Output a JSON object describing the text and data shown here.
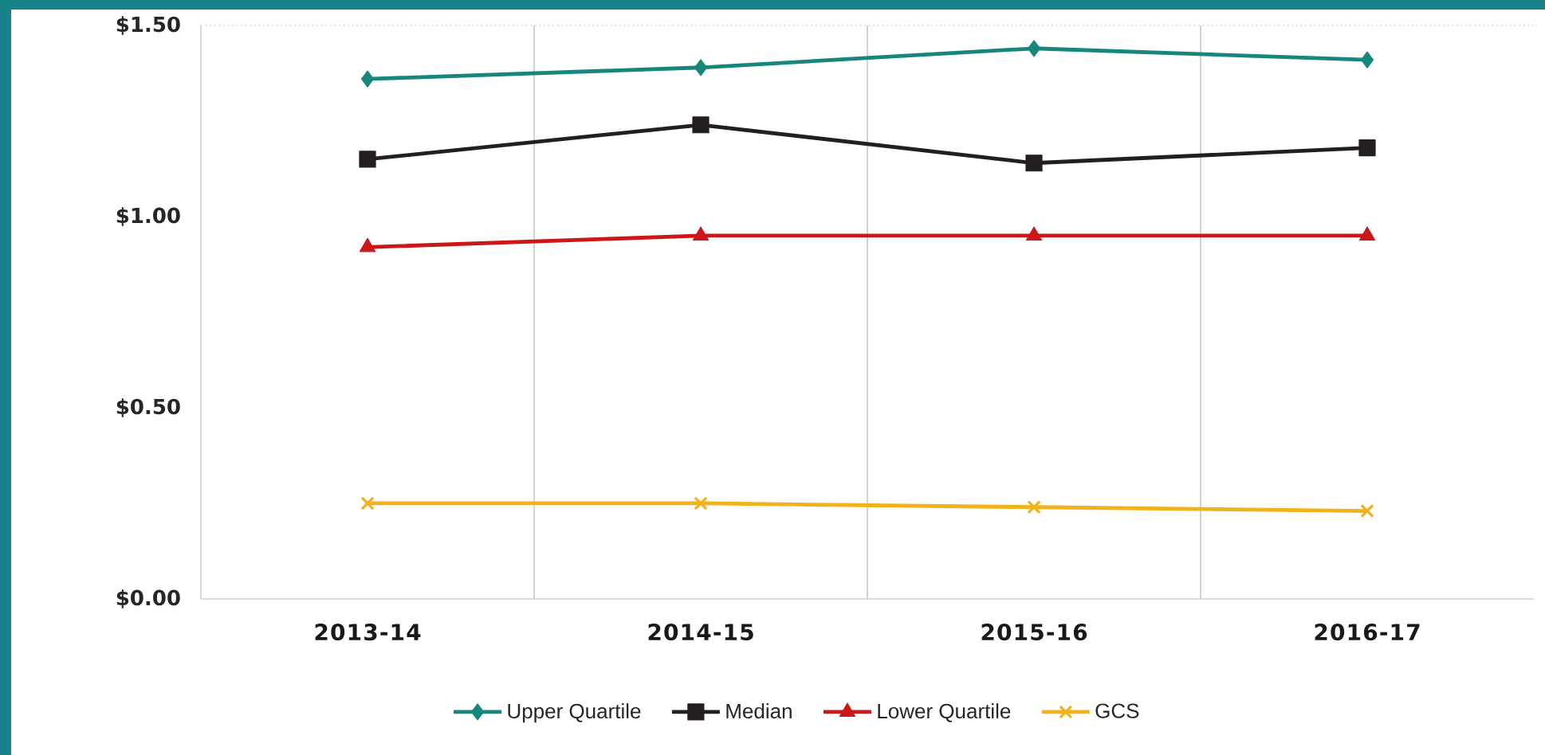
{
  "chart_data": {
    "type": "line",
    "categories": [
      "2013-14",
      "2014-15",
      "2015-16",
      "2016-17"
    ],
    "series": [
      {
        "name": "Upper Quartile",
        "color": "#16877a",
        "marker": "diamond",
        "values": [
          1.36,
          1.39,
          1.44,
          1.41
        ]
      },
      {
        "name": "Median",
        "color": "#231f20",
        "marker": "square",
        "values": [
          1.15,
          1.24,
          1.14,
          1.18
        ]
      },
      {
        "name": "Lower Quartile",
        "color": "#cc1719",
        "marker": "triangle",
        "values": [
          0.92,
          0.95,
          0.95,
          0.95
        ]
      },
      {
        "name": "GCS",
        "color": "#f2b21b",
        "marker": "cross",
        "values": [
          0.25,
          0.25,
          0.24,
          0.23
        ]
      }
    ],
    "ylim": [
      0,
      1.5
    ],
    "yticks": [
      {
        "value": 0,
        "label": "$0.00"
      },
      {
        "value": 0.5,
        "label": "$0.50"
      },
      {
        "value": 1.0,
        "label": "$1.00"
      },
      {
        "value": 1.5,
        "label": "$1.50"
      }
    ],
    "grid": "x",
    "legend": "bottom",
    "line_style": "solid"
  }
}
